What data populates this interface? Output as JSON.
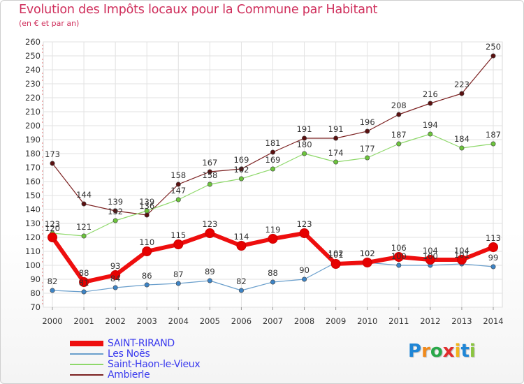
{
  "header": {
    "title": "Evolution des Impôts locaux pour la Commune par Habitant",
    "subtitle": "(en € et par an)"
  },
  "brand": {
    "name": "Proxiti",
    "letters": [
      "P",
      "r",
      "o",
      "x",
      "i",
      "t",
      "i"
    ],
    "letter_colors": [
      "#1f86d6",
      "#f08a1c",
      "#2aa84a",
      "#e22d2d",
      "#f2b51b",
      "#1f86d6",
      "#8bc53f"
    ]
  },
  "chart_data": {
    "type": "line",
    "title": "Evolution des Impôts locaux pour la Commune par Habitant",
    "subtitle": "(en € et par an)",
    "xlabel": "",
    "ylabel": "",
    "x": [
      "2000",
      "2001",
      "2002",
      "2003",
      "2004",
      "2005",
      "2006",
      "2007",
      "2008",
      "2009",
      "2010",
      "2011",
      "2012",
      "2013",
      "2014"
    ],
    "ylim": [
      70,
      260
    ],
    "yticks": [
      "70",
      "80",
      "90",
      "100",
      "110",
      "120",
      "130",
      "140",
      "150",
      "160",
      "170",
      "180",
      "190",
      "200",
      "210",
      "220",
      "230",
      "240",
      "250",
      "260"
    ],
    "grid": true,
    "legend_position": "bottom-left",
    "series": [
      {
        "name": "Ambierle",
        "color": "#7b2020",
        "marker_color": "#5a1010",
        "values": [
          173,
          144,
          139,
          136,
          158,
          167,
          169,
          181,
          191,
          191,
          196,
          208,
          216,
          223,
          250
        ],
        "labels": [
          "173",
          "144",
          "139",
          "136",
          "158",
          "167",
          "169",
          "181",
          "191",
          "191",
          "196",
          "208",
          "216",
          "223",
          "250"
        ]
      },
      {
        "name": "Saint-Haon-le-Vieux",
        "color": "#8ed86a",
        "marker_color": "#6cc43c",
        "values": [
          123,
          121,
          132,
          139,
          147,
          158,
          162,
          169,
          180,
          174,
          177,
          187,
          194,
          184,
          187
        ],
        "labels": [
          "123",
          "121",
          "132",
          "139",
          "147",
          "158",
          "162",
          "169",
          "180",
          "174",
          "177",
          "187",
          "194",
          "184",
          "187"
        ]
      },
      {
        "name": "Les Noës",
        "color": "#6a9fcc",
        "marker_color": "#3d84c6",
        "values": [
          82,
          81,
          84,
          86,
          87,
          89,
          82,
          88,
          90,
          102,
          102,
          100,
          100,
          101,
          99
        ],
        "labels": [
          "82",
          "81",
          "84",
          "86",
          "87",
          "89",
          "82",
          "88",
          "90",
          "102",
          "102",
          "100",
          "100",
          "101",
          "99"
        ]
      },
      {
        "name": "SAINT-RIRAND",
        "color": "#ee0e0e",
        "marker_color": "#e60000",
        "values": [
          120,
          88,
          93,
          110,
          115,
          123,
          114,
          119,
          123,
          101,
          102,
          106,
          104,
          104,
          113
        ],
        "labels": [
          "120",
          "88",
          "93",
          "110",
          "115",
          "123",
          "114",
          "119",
          "123",
          "101",
          "102",
          "106",
          "104",
          "104",
          "113"
        ]
      }
    ],
    "legend": [
      "SAINT-RIRAND",
      "Les Noës",
      "Saint-Haon-le-Vieux",
      "Ambierle"
    ]
  }
}
